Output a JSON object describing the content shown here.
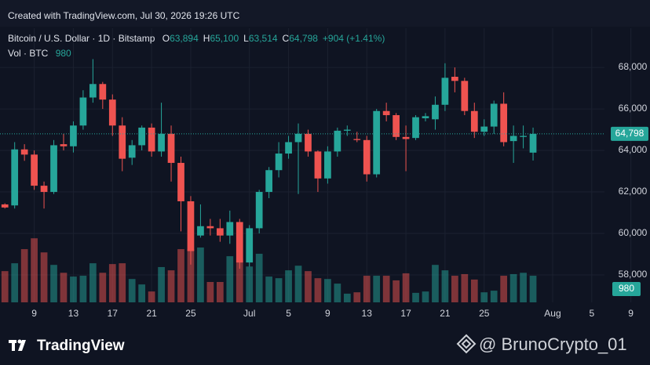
{
  "header": {
    "created": "Created with TradingView.com, Jul 30, 2026 19:26 UTC",
    "symbol": "Bitcoin / U.S. Dollar · 1D · Bitstamp",
    "ohlc": [
      {
        "key": "O",
        "value": "63,894"
      },
      {
        "key": "H",
        "value": "65,100"
      },
      {
        "key": "L",
        "value": "63,514"
      },
      {
        "key": "C",
        "value": "64,798"
      }
    ],
    "change": "+904 (+1.41%)",
    "volume_label": "Vol · BTC",
    "volume_value": "980"
  },
  "footer": {
    "brand": "TradingView",
    "watermark": "@ BrunoCrypto_01"
  },
  "chart_data": {
    "type": "candlestick",
    "up_color": "#26a69a",
    "down_color": "#ef5350",
    "open": [
      61400,
      61350,
      64050,
      63800,
      62300,
      62000,
      64300,
      64200,
      65200,
      66550,
      67200,
      66450,
      65200,
      63650,
      64250,
      65100,
      63950,
      64800,
      63400,
      61550,
      59900,
      60350,
      60250,
      59900,
      60550,
      58600,
      60250,
      62000,
      63050,
      63850,
      64400,
      64800,
      63950,
      62650,
      63950,
      64950,
      64550,
      64500,
      62850,
      65900,
      65700,
      64650,
      64600,
      65550,
      65500,
      66200,
      67550,
      67350,
      65900,
      64900,
      65150,
      66250,
      64450,
      64650,
      63894
    ],
    "high": [
      61450,
      64400,
      64300,
      64000,
      62500,
      64500,
      64800,
      65400,
      66900,
      68400,
      67300,
      66700,
      65600,
      64500,
      65200,
      65300,
      66300,
      65200,
      63700,
      61800,
      61400,
      60700,
      60700,
      61100,
      60700,
      60400,
      62100,
      63200,
      64400,
      64700,
      65300,
      65000,
      64000,
      64200,
      65100,
      65200,
      64900,
      64700,
      66000,
      66300,
      65800,
      65200,
      65700,
      65800,
      66600,
      68200,
      68000,
      67500,
      66300,
      65500,
      66400,
      66800,
      65200,
      65200,
      65100
    ],
    "low": [
      61200,
      61200,
      63500,
      62100,
      61200,
      61900,
      64000,
      63900,
      65000,
      66300,
      66000,
      64700,
      63000,
      63300,
      64000,
      63700,
      63700,
      62500,
      60100,
      58500,
      59800,
      59900,
      59600,
      59500,
      58300,
      58400,
      60000,
      61700,
      62700,
      63600,
      61900,
      63700,
      62000,
      62400,
      63700,
      64700,
      64400,
      62500,
      62700,
      65400,
      64500,
      63000,
      64500,
      65400,
      65000,
      65900,
      66800,
      65700,
      64600,
      64700,
      64800,
      64200,
      63400,
      64100,
      63514
    ],
    "close": [
      61250,
      64050,
      63800,
      62300,
      62000,
      64250,
      64200,
      65200,
      66550,
      67200,
      66450,
      65200,
      63600,
      64250,
      65100,
      63950,
      64800,
      63400,
      61550,
      59150,
      60350,
      60250,
      59900,
      60550,
      58600,
      60250,
      62000,
      63050,
      63850,
      64400,
      64800,
      63950,
      62650,
      63950,
      64950,
      65000,
      64500,
      62850,
      65900,
      65700,
      64650,
      64550,
      65600,
      65650,
      66200,
      67500,
      67350,
      65900,
      64900,
      65150,
      66250,
      64400,
      64700,
      64700,
      64798
    ],
    "volume": [
      1150,
      1440,
      1960,
      2360,
      1840,
      1380,
      1090,
      950,
      980,
      1440,
      1090,
      1410,
      1440,
      860,
      660,
      400,
      1300,
      1180,
      1960,
      1960,
      2020,
      750,
      750,
      1700,
      1610,
      1320,
      1790,
      950,
      890,
      1180,
      1350,
      1150,
      890,
      860,
      690,
      320,
      370,
      980,
      980,
      980,
      810,
      1070,
      350,
      400,
      1380,
      1180,
      980,
      1040,
      840,
      370,
      430,
      980,
      1040,
      1090,
      980
    ],
    "xlim": [
      -0.5,
      61.3
    ],
    "xticks": [
      {
        "value": 3,
        "label": "9"
      },
      {
        "value": 7,
        "label": "13"
      },
      {
        "value": 11,
        "label": "17"
      },
      {
        "value": 15,
        "label": "21"
      },
      {
        "value": 19,
        "label": "25"
      },
      {
        "value": 25,
        "label": "Jul"
      },
      {
        "value": 29,
        "label": "5"
      },
      {
        "value": 33,
        "label": "9"
      },
      {
        "value": 37,
        "label": "13"
      },
      {
        "value": 41,
        "label": "17"
      },
      {
        "value": 45,
        "label": "21"
      },
      {
        "value": 49,
        "label": "25"
      },
      {
        "value": 56,
        "label": "Aug"
      },
      {
        "value": 60,
        "label": "5"
      },
      {
        "value": 64,
        "label": "9"
      }
    ],
    "ylim": [
      56680,
      69890
    ],
    "yticks": [
      {
        "value": 58000,
        "label": "58,000"
      },
      {
        "value": 60000,
        "label": "60,000"
      },
      {
        "value": 62000,
        "label": "62,000"
      },
      {
        "value": 64000,
        "label": "64,000"
      },
      {
        "value": 66000,
        "label": "66,000"
      },
      {
        "value": 68000,
        "label": "68,000"
      }
    ],
    "y2lim": [
      0,
      10100
    ],
    "grid": true,
    "last_price": {
      "value": 64798,
      "label": "64,798"
    },
    "last_volume": {
      "value": 980,
      "label": "980"
    }
  }
}
